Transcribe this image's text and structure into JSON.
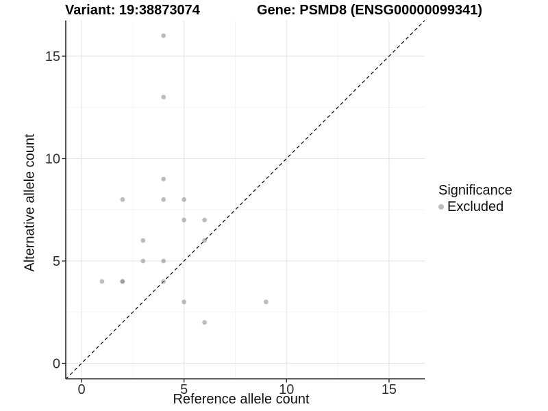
{
  "header": {
    "variant_title": "Variant: 19:38873074",
    "gene_title": "Gene: PSMD8 (ENSG00000099341)"
  },
  "legend": {
    "title": "Significance",
    "items": [
      {
        "label": "Excluded",
        "swatch_color": "#bdbdbd"
      }
    ]
  },
  "chart_data": {
    "type": "scatter",
    "xlabel": "Reference allele count",
    "ylabel": "Alternative allele count",
    "x_ticks": [
      0,
      5,
      10,
      15
    ],
    "y_ticks": [
      0,
      5,
      10,
      15
    ],
    "x_minor_ticks": [
      2.5,
      7.5,
      12.5
    ],
    "y_minor_ticks": [
      2.5,
      7.5,
      12.5
    ],
    "xlim": [
      -0.77,
      16.74
    ],
    "ylim": [
      -0.75,
      16.74
    ],
    "grid": "major+minor",
    "legend_position": "right",
    "identity_line": {
      "slope": 1,
      "intercept": 0,
      "style": "dashed",
      "color": "#000000"
    },
    "colors": {
      "point_fill": "#878787",
      "point_opacity": 0.55,
      "grid_major": "#e7e7e7",
      "grid_minor": "#f4f4f4",
      "axis_line": "#2b2b2b",
      "tick_label": "#303030"
    },
    "series": [
      {
        "name": "Excluded",
        "points": [
          [
            4,
            16
          ],
          [
            4,
            13
          ],
          [
            4,
            9
          ],
          [
            2,
            8
          ],
          [
            4,
            8
          ],
          [
            5,
            8
          ],
          [
            5,
            7
          ],
          [
            6,
            7
          ],
          [
            3,
            6
          ],
          [
            6,
            6
          ],
          [
            3,
            5
          ],
          [
            4,
            5
          ],
          [
            1,
            4
          ],
          [
            2,
            4
          ],
          [
            2,
            4
          ],
          [
            4,
            4
          ],
          [
            5,
            3
          ],
          [
            9,
            3
          ],
          [
            6,
            2
          ]
        ]
      }
    ]
  }
}
